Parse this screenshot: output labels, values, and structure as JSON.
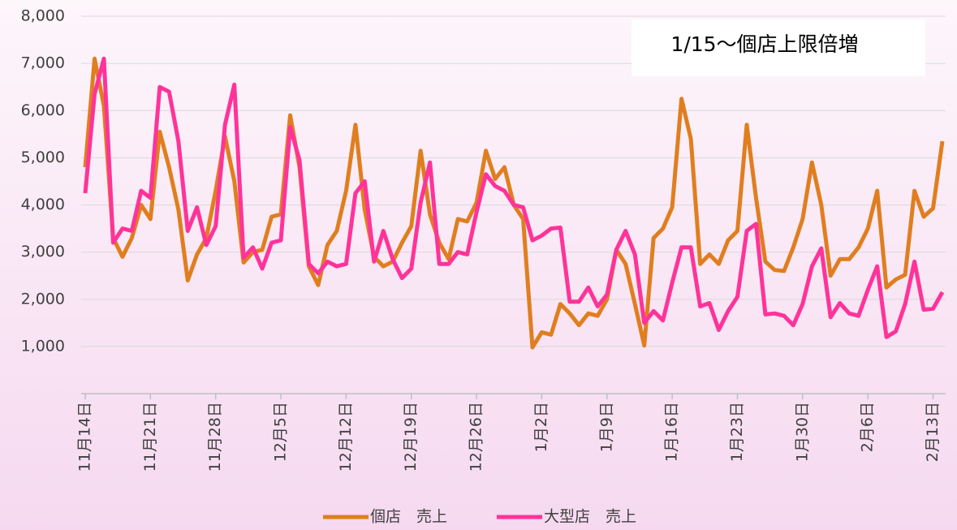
{
  "chart_data": {
    "type": "line",
    "categories": [
      "11月14日",
      null,
      null,
      null,
      null,
      null,
      null,
      "11月21日",
      null,
      null,
      null,
      null,
      null,
      null,
      "11月28日",
      null,
      null,
      null,
      null,
      null,
      null,
      "12月5日",
      null,
      null,
      null,
      null,
      null,
      null,
      "12月12日",
      null,
      null,
      null,
      null,
      null,
      null,
      "12月19日",
      null,
      null,
      null,
      null,
      null,
      null,
      "12月26日",
      null,
      null,
      null,
      null,
      null,
      null,
      "1月2日",
      null,
      null,
      null,
      null,
      null,
      null,
      "1月9日",
      null,
      null,
      null,
      null,
      null,
      null,
      "1月16日",
      null,
      null,
      null,
      null,
      null,
      null,
      "1月23日",
      null,
      null,
      null,
      null,
      null,
      null,
      "1月30日",
      null,
      null,
      null,
      null,
      null,
      null,
      "2月6日",
      null,
      null,
      null,
      null,
      null,
      null,
      "2月13日",
      null
    ],
    "series": [
      {
        "name": "個店　売上",
        "color": "#e07e1f",
        "values": [
          4800,
          7100,
          6100,
          3300,
          2900,
          3300,
          4000,
          3700,
          5550,
          4800,
          3900,
          2400,
          2950,
          3300,
          4300,
          5450,
          4500,
          2780,
          3000,
          3050,
          3750,
          3800,
          5900,
          4800,
          2700,
          2300,
          3150,
          3450,
          4300,
          5700,
          3900,
          2900,
          2700,
          2800,
          3200,
          3550,
          5150,
          3800,
          3200,
          2850,
          3700,
          3650,
          4050,
          5150,
          4550,
          4800,
          4000,
          3700,
          980,
          1300,
          1250,
          1900,
          1700,
          1450,
          1700,
          1650,
          2000,
          3050,
          2750,
          1900,
          1020,
          3300,
          3500,
          3950,
          6250,
          5400,
          2750,
          2950,
          2750,
          3250,
          3450,
          5700,
          4150,
          2800,
          2620,
          2600,
          3100,
          3700,
          4900,
          4000,
          2500,
          2850,
          2850,
          3100,
          3500,
          4300,
          2250,
          2420,
          2520,
          4300,
          3750,
          3930,
          5350
        ]
      },
      {
        "name": "大型店　売上",
        "color": "#ff3399",
        "values": [
          4250,
          6350,
          7100,
          3200,
          3500,
          3450,
          4300,
          4150,
          6500,
          6400,
          5350,
          3450,
          3950,
          3150,
          3550,
          5700,
          6550,
          2880,
          3100,
          2650,
          3200,
          3250,
          5650,
          4950,
          2750,
          2550,
          2800,
          2700,
          2750,
          4250,
          4500,
          2800,
          3450,
          2850,
          2450,
          2650,
          4050,
          4900,
          2750,
          2750,
          3000,
          2950,
          3850,
          4650,
          4400,
          4300,
          4000,
          3950,
          3250,
          3350,
          3500,
          3520,
          1950,
          1950,
          2250,
          1850,
          2100,
          3050,
          3450,
          2950,
          1500,
          1750,
          1550,
          2350,
          3100,
          3100,
          1850,
          1920,
          1350,
          1750,
          2050,
          3450,
          3600,
          1680,
          1700,
          1650,
          1450,
          1900,
          2700,
          3080,
          1620,
          1920,
          1700,
          1650,
          2200,
          2700,
          1200,
          1320,
          1900,
          2800,
          1780,
          1800,
          2150
        ]
      }
    ],
    "ylim": [
      0,
      8000
    ],
    "yticks": [
      {
        "value": 1000,
        "label": "1,000"
      },
      {
        "value": 2000,
        "label": "2,000"
      },
      {
        "value": 3000,
        "label": "3,000"
      },
      {
        "value": 4000,
        "label": "4,000"
      },
      {
        "value": 5000,
        "label": "5,000"
      },
      {
        "value": 6000,
        "label": "6,000"
      },
      {
        "value": 7000,
        "label": "7,000"
      },
      {
        "value": 8000,
        "label": "8,000"
      }
    ],
    "grid": true,
    "annotation": "1/15～個店上限倍増",
    "legend": "bottom"
  }
}
